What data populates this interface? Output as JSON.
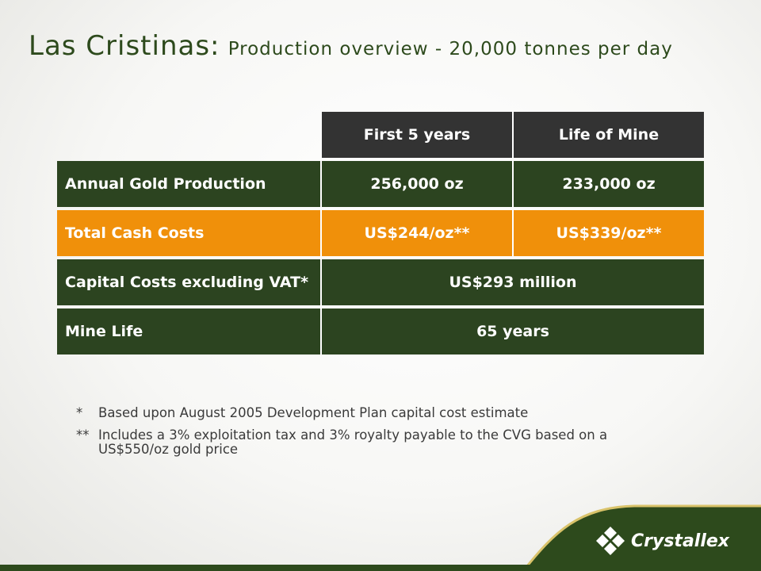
{
  "title": {
    "main": "Las Cristinas:",
    "sub": "Production overview - 20,000 tonnes per day"
  },
  "table": {
    "headers": [
      "",
      "First 5 years",
      "Life of Mine"
    ],
    "rows": [
      {
        "label": "Annual Gold Production",
        "values": [
          "256,000 oz",
          "233,000 oz"
        ],
        "style": "green"
      },
      {
        "label": "Total Cash Costs",
        "values": [
          "US$244/oz**",
          "US$339/oz**"
        ],
        "style": "orange"
      },
      {
        "label": "Capital Costs excluding VAT*",
        "values": [
          "US$293 million"
        ],
        "style": "green"
      },
      {
        "label": "Mine Life",
        "values": [
          "65 years"
        ],
        "style": "green"
      }
    ]
  },
  "notes": [
    {
      "marker": "*",
      "text": "Based upon August 2005 Development Plan capital cost estimate"
    },
    {
      "marker": "**",
      "text": "Includes a 3% exploitation tax and 3% royalty payable to the CVG based on a US$550/oz  gold price"
    }
  ],
  "logo": {
    "text": "Crystallex",
    "icon": "crystallex-diamond-icon"
  },
  "colors": {
    "dark_green": "#2c4420",
    "orange": "#f0900a",
    "header_grey": "#333333",
    "title_green": "#2d4a1c"
  }
}
